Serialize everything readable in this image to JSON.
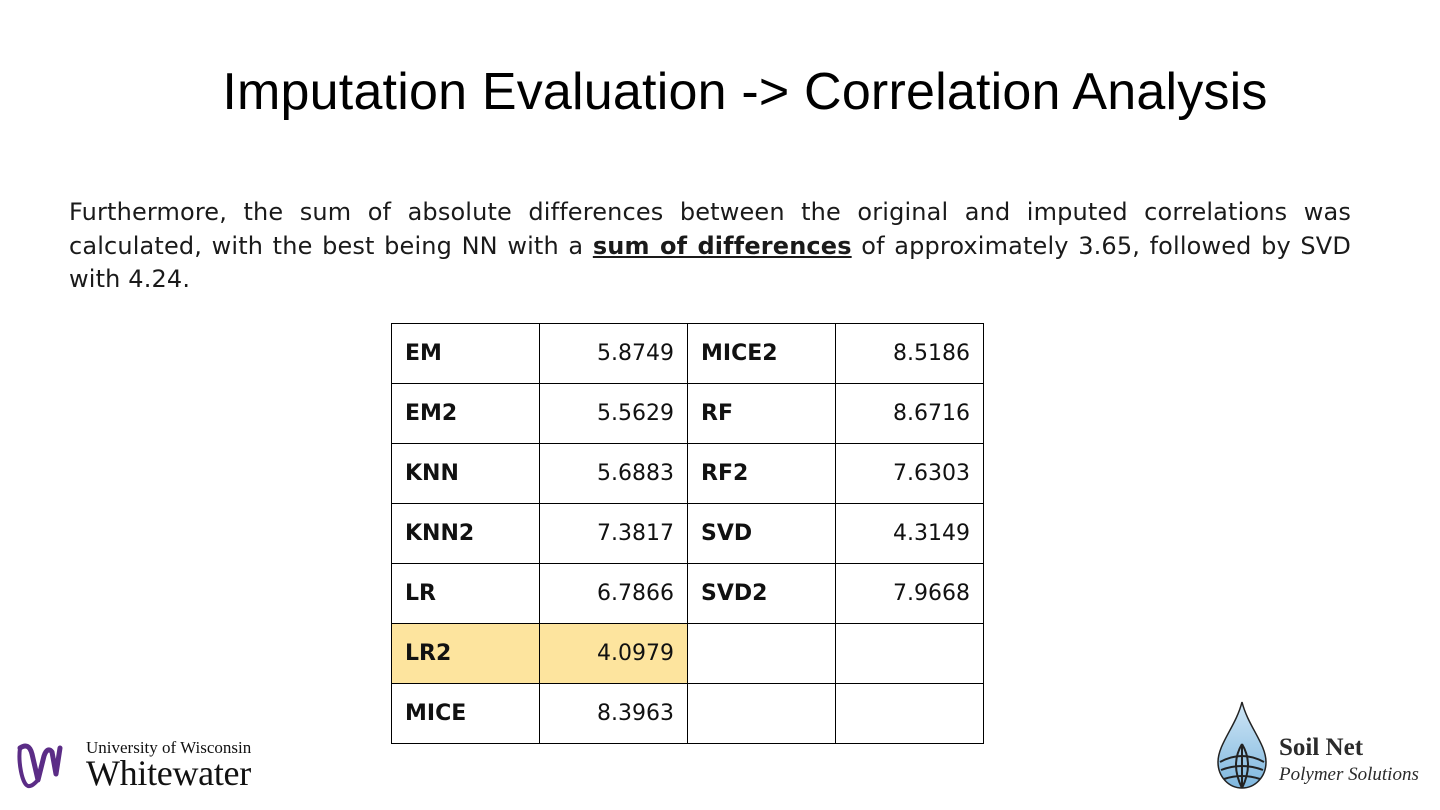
{
  "slide": {
    "title": "Imputation Evaluation -> Correlation Analysis",
    "paragraph_before": "Furthermore, the sum of absolute differences between the original and imputed correlations was calculated, with the best being NN with a ",
    "paragraph_emphasis": "sum of differences",
    "paragraph_after": " of approximately 3.65, followed by SVD with 4.24."
  },
  "table": {
    "rows": [
      {
        "l1": "EM",
        "v1": "5.8749",
        "l2": "MICE2",
        "v2": "8.5186"
      },
      {
        "l1": "EM2",
        "v1": "5.5629",
        "l2": "RF",
        "v2": "8.6716"
      },
      {
        "l1": "KNN",
        "v1": "5.6883",
        "l2": "RF2",
        "v2": "7.6303"
      },
      {
        "l1": "KNN2",
        "v1": "7.3817",
        "l2": "SVD",
        "v2": "4.3149"
      },
      {
        "l1": "LR",
        "v1": "6.7866",
        "l2": "SVD2",
        "v2": "7.9668"
      },
      {
        "l1": "LR2",
        "v1": "4.0979",
        "l2": "",
        "v2": ""
      },
      {
        "l1": "MICE",
        "v1": "8.3963",
        "l2": "",
        "v2": ""
      }
    ],
    "highlight_row": "LR2",
    "highlight_color": "#fde49e"
  },
  "logos": {
    "uw_line1": "University of Wisconsin",
    "uw_line2": "Whitewater",
    "uw_color": "#5b2c86",
    "soilnet_line1": "Soil Net",
    "soilnet_line2": "Polymer Solutions",
    "soilnet_color": "#8fc4e6"
  }
}
